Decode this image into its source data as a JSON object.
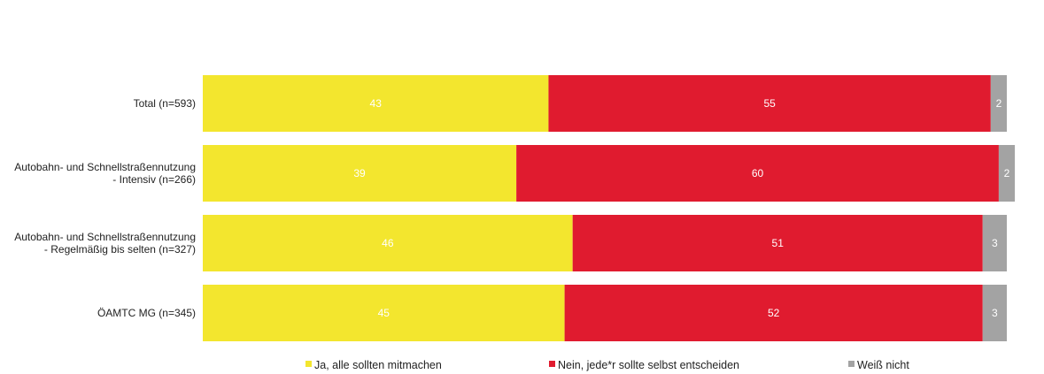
{
  "chart_data": {
    "type": "bar",
    "orientation": "horizontal",
    "stacked": true,
    "categories": [
      [
        "Total (n=593)"
      ],
      [
        "Autobahn- und Schnellstraßennutzung",
        "- Intensiv (n=266)"
      ],
      [
        "Autobahn- und Schnellstraßennutzung",
        "- Regelmäßig bis selten (n=327)"
      ],
      [
        "ÖAMTC MG (n=345)"
      ]
    ],
    "series": [
      {
        "name": "Ja, alle sollten mitmachen",
        "color": "#f3e62e",
        "values": [
          43,
          39,
          46,
          45
        ]
      },
      {
        "name": "Nein, jede*r sollte selbst entscheiden",
        "color": "#e01b2f",
        "values": [
          55,
          60,
          51,
          52
        ]
      },
      {
        "name": "Weiß nicht",
        "color": "#a3a3a3",
        "values": [
          2,
          2,
          3,
          3
        ]
      }
    ],
    "xlim": [
      0,
      100
    ],
    "grid": false,
    "legend_position": "bottom"
  }
}
